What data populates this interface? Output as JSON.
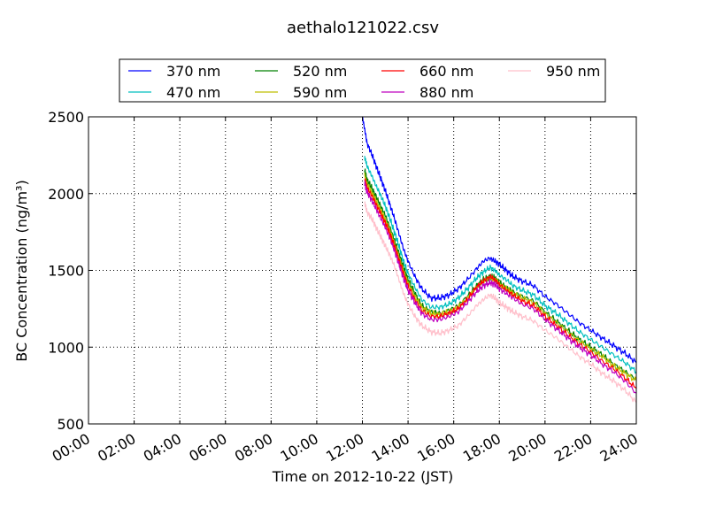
{
  "chart_data": {
    "type": "line",
    "title": "aethalo121022.csv",
    "xlabel": "Time on 2012-10-22 (JST)",
    "ylabel": "BC Concentration (ng/m³)",
    "xlim": [
      0,
      24
    ],
    "ylim": [
      500,
      2500
    ],
    "x_ticks": [
      "00:00",
      "02:00",
      "04:00",
      "06:00",
      "08:00",
      "10:00",
      "12:00",
      "14:00",
      "16:00",
      "18:00",
      "20:00",
      "22:00",
      "24:00"
    ],
    "y_ticks": [
      "500",
      "1000",
      "1500",
      "2000",
      "2500"
    ],
    "grid": true,
    "legend_position": "top-center",
    "x": [
      12.0,
      12.1,
      12.2,
      12.4,
      12.6,
      12.8,
      13.0,
      13.2,
      13.4,
      13.6,
      13.8,
      14.0,
      14.3,
      14.6,
      15.0,
      15.4,
      15.8,
      16.2,
      16.6,
      17.0,
      17.3,
      17.6,
      17.8,
      18.0,
      18.3,
      18.6,
      19.0,
      19.5,
      20.0,
      20.5,
      21.0,
      21.5,
      22.0,
      22.5,
      23.0,
      23.5,
      24.0
    ],
    "series": [
      {
        "name": "370 nm",
        "color": "#0000ff",
        "values": [
          2500,
          2420,
          2330,
          2260,
          2180,
          2100,
          2020,
          1930,
          1840,
          1740,
          1640,
          1560,
          1460,
          1380,
          1320,
          1320,
          1340,
          1380,
          1440,
          1510,
          1560,
          1580,
          1560,
          1540,
          1500,
          1460,
          1430,
          1400,
          1330,
          1280,
          1220,
          1160,
          1110,
          1060,
          1010,
          960,
          900
        ]
      },
      {
        "name": "470 nm",
        "color": "#00bfbf",
        "values": [
          null,
          2240,
          2180,
          2120,
          2050,
          1990,
          1920,
          1840,
          1750,
          1660,
          1560,
          1480,
          1390,
          1310,
          1260,
          1260,
          1280,
          1320,
          1380,
          1450,
          1490,
          1520,
          1500,
          1470,
          1440,
          1400,
          1370,
          1340,
          1270,
          1220,
          1160,
          1100,
          1050,
          1000,
          950,
          900,
          840
        ]
      },
      {
        "name": "520 nm",
        "color": "#008000",
        "values": [
          null,
          2150,
          2090,
          2040,
          1980,
          1920,
          1860,
          1780,
          1700,
          1610,
          1520,
          1440,
          1350,
          1270,
          1230,
          1220,
          1240,
          1270,
          1330,
          1400,
          1440,
          1460,
          1450,
          1420,
          1390,
          1360,
          1330,
          1300,
          1230,
          1170,
          1110,
          1050,
          1000,
          950,
          890,
          840,
          790
        ]
      },
      {
        "name": "590 nm",
        "color": "#bfbf00",
        "values": [
          null,
          2120,
          2060,
          2010,
          1950,
          1890,
          1830,
          1760,
          1680,
          1590,
          1500,
          1420,
          1330,
          1260,
          1220,
          1210,
          1230,
          1260,
          1320,
          1390,
          1430,
          1450,
          1440,
          1410,
          1380,
          1350,
          1320,
          1290,
          1220,
          1160,
          1100,
          1040,
          990,
          940,
          880,
          830,
          780
        ]
      },
      {
        "name": "660 nm",
        "color": "#ff0000",
        "values": [
          null,
          2100,
          2040,
          1990,
          1930,
          1870,
          1810,
          1740,
          1660,
          1570,
          1480,
          1400,
          1310,
          1240,
          1200,
          1200,
          1220,
          1250,
          1310,
          1390,
          1430,
          1460,
          1440,
          1410,
          1370,
          1340,
          1300,
          1270,
          1200,
          1140,
          1080,
          1020,
          970,
          910,
          860,
          800,
          730
        ]
      },
      {
        "name": "880 nm",
        "color": "#bf00bf",
        "values": [
          null,
          2070,
          2010,
          1960,
          1900,
          1840,
          1780,
          1710,
          1630,
          1540,
          1450,
          1370,
          1290,
          1220,
          1180,
          1180,
          1200,
          1230,
          1290,
          1360,
          1400,
          1420,
          1410,
          1380,
          1350,
          1320,
          1280,
          1250,
          1180,
          1120,
          1060,
          1000,
          950,
          890,
          840,
          780,
          700
        ]
      },
      {
        "name": "950 nm",
        "color": "#ffc0cb",
        "values": [
          null,
          1940,
          1880,
          1840,
          1780,
          1720,
          1660,
          1600,
          1530,
          1440,
          1350,
          1280,
          1200,
          1140,
          1100,
          1090,
          1110,
          1140,
          1200,
          1270,
          1310,
          1340,
          1320,
          1290,
          1260,
          1230,
          1200,
          1170,
          1110,
          1060,
          1000,
          940,
          890,
          830,
          780,
          720,
          640
        ]
      }
    ]
  }
}
